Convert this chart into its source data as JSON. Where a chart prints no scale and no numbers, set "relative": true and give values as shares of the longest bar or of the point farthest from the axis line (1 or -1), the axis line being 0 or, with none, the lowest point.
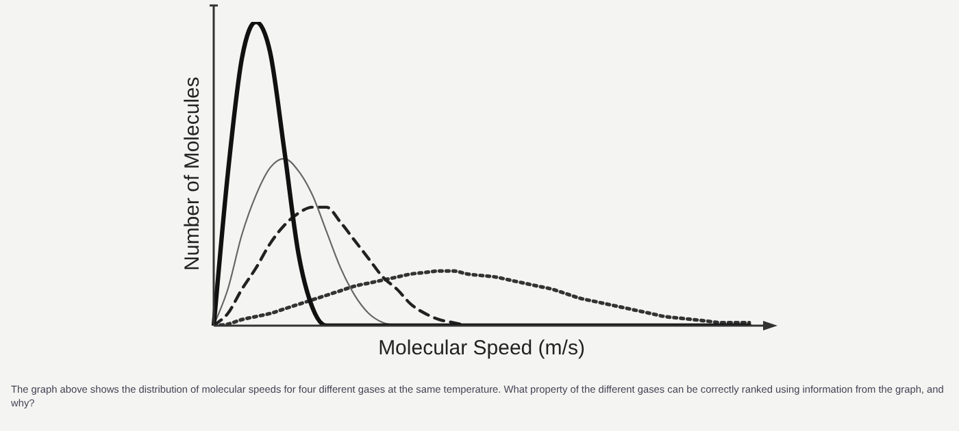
{
  "chart_data": {
    "type": "line",
    "relative": true,
    "xlabel": "Molecular Speed (m/s)",
    "ylabel": "Number of Molecules",
    "categories": [
      null,
      null,
      null,
      null,
      null,
      null,
      null,
      null,
      null,
      null,
      null,
      null,
      null,
      null,
      null,
      null,
      null,
      null,
      null,
      null,
      null,
      null,
      null,
      null,
      null,
      null,
      null,
      null,
      null,
      null,
      null,
      null,
      null,
      null,
      null,
      null,
      null,
      null,
      null
    ],
    "series": [
      {
        "color": "#111111",
        "line_style": "solid",
        "values": [
          0,
          0.5,
          0.88,
          1,
          0.9,
          0.58,
          0.24,
          0.06,
          0,
          0,
          0,
          0,
          0,
          0,
          0,
          0,
          0,
          0,
          0,
          0,
          0,
          0,
          0,
          0,
          0,
          0,
          0,
          0,
          0,
          0,
          0,
          0,
          0,
          0,
          0,
          0,
          0,
          0,
          0
        ]
      },
      {
        "color": "#666666",
        "line_style": "solid",
        "values": [
          0,
          0.12,
          0.3,
          0.43,
          0.52,
          0.55,
          0.51,
          0.43,
          0.31,
          0.19,
          0.1,
          0.04,
          0.01,
          0,
          null,
          null,
          null,
          null,
          null,
          null,
          null,
          null,
          null,
          null,
          null,
          null,
          null,
          null,
          null,
          null,
          null,
          null,
          null,
          null,
          null,
          null,
          null,
          null,
          null
        ]
      },
      {
        "color": "#222222",
        "line_style": "dashed",
        "values": [
          0,
          0.04,
          0.12,
          0.19,
          0.27,
          0.33,
          0.37,
          0.39,
          0.39,
          0.34,
          0.28,
          0.22,
          0.16,
          0.12,
          0.07,
          0.04,
          0.02,
          0.01,
          0,
          null,
          null,
          null,
          null,
          null,
          null,
          null,
          null,
          null,
          null,
          null,
          null,
          null,
          null,
          null,
          null,
          null,
          null,
          null,
          null
        ]
      },
      {
        "color": "#333333",
        "line_style": "dotted",
        "values": [
          0,
          0.005,
          0.02,
          0.03,
          0.04,
          0.055,
          0.07,
          0.085,
          0.1,
          0.115,
          0.13,
          0.14,
          0.15,
          0.16,
          0.17,
          0.175,
          0.18,
          0.18,
          0.17,
          0.165,
          0.16,
          0.15,
          0.14,
          0.13,
          0.12,
          0.105,
          0.09,
          0.08,
          0.07,
          0.06,
          0.05,
          0.04,
          0.03,
          0.025,
          0.02,
          0.015,
          0.01,
          0.01,
          0.01
        ]
      }
    ],
    "annotations": [
      "The graph above shows the distribution of molecular speeds for four different gases at the same temperature. What property of the different gases can be correctly ranked using information from the graph, and why?"
    ],
    "legend": false,
    "grid": false,
    "tick_labels": false,
    "marker": "none"
  }
}
